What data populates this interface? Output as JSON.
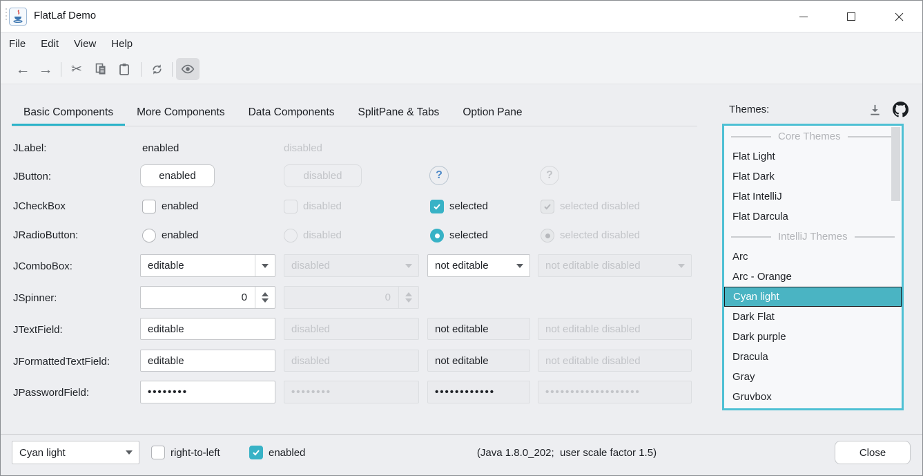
{
  "window": {
    "title": "FlatLaf Demo"
  },
  "menubar": {
    "items": [
      "File",
      "Edit",
      "View",
      "Help"
    ]
  },
  "toolbar": {
    "icons": [
      "back",
      "forward",
      "cut",
      "copy",
      "paste",
      "refresh",
      "show-eye"
    ]
  },
  "tabs": {
    "items": [
      "Basic Components",
      "More Components",
      "Data Components",
      "SplitPane & Tabs",
      "Option Pane"
    ],
    "selected": "Basic Components"
  },
  "themes": {
    "label": "Themes:",
    "icons": [
      "download",
      "github"
    ],
    "items": [
      {
        "header": true,
        "label": "Core Themes"
      },
      {
        "label": "Flat Light"
      },
      {
        "label": "Flat Dark"
      },
      {
        "label": "Flat IntelliJ"
      },
      {
        "label": "Flat Darcula"
      },
      {
        "header": true,
        "label": "IntelliJ Themes"
      },
      {
        "label": "Arc"
      },
      {
        "label": "Arc - Orange"
      },
      {
        "label": "Cyan light",
        "selected": true
      },
      {
        "label": "Dark Flat"
      },
      {
        "label": "Dark purple"
      },
      {
        "label": "Dracula"
      },
      {
        "label": "Gray"
      },
      {
        "label": "Gruvbox"
      }
    ]
  },
  "grid": {
    "jlabel": {
      "label": "JLabel:",
      "c1": "enabled",
      "c2": "disabled"
    },
    "jbutton": {
      "label": "JButton:",
      "c1": "enabled",
      "c2": "disabled",
      "help": "?",
      "help_disabled": "?"
    },
    "jcheckbox": {
      "label": "JCheckBox",
      "c1": "enabled",
      "c2": "disabled",
      "c3": "selected",
      "c4": "selected disabled"
    },
    "jradio": {
      "label": "JRadioButton:",
      "c1": "enabled",
      "c2": "disabled",
      "c3": "selected",
      "c4": "selected disabled"
    },
    "jcombo": {
      "label": "JComboBox:",
      "c1": "editable",
      "c2": "disabled",
      "c3": "not editable",
      "c4": "not editable disabled"
    },
    "jspinner": {
      "label": "JSpinner:",
      "c1": "0",
      "c2": "0"
    },
    "jtext": {
      "label": "JTextField:",
      "c1": "editable",
      "c2": "disabled",
      "c3": "not editable",
      "c4": "not editable disabled"
    },
    "jformatted": {
      "label": "JFormattedTextField:",
      "c1": "editable",
      "c2": "disabled",
      "c3": "not editable",
      "c4": "not editable disabled"
    },
    "jpassword": {
      "label": "JPasswordField:",
      "c1": "••••••••",
      "c2": "••••••••",
      "c3": "••••••••••••",
      "c4": "•••••••••••••••••••"
    }
  },
  "bottombar": {
    "theme_combo_value": "Cyan light",
    "rtl_label": "right-to-left",
    "enabled_label": "enabled",
    "status": "(Java 1.8.0_202;  user scale factor 1.5)",
    "close_label": "Close"
  },
  "colors": {
    "accent": "#2bb3c9",
    "checkbox_fill": "#38b2c6",
    "list_selection": "#4ab4c3",
    "focus_border": "#4ec0d4",
    "disabled_text": "#c2c4c8"
  }
}
